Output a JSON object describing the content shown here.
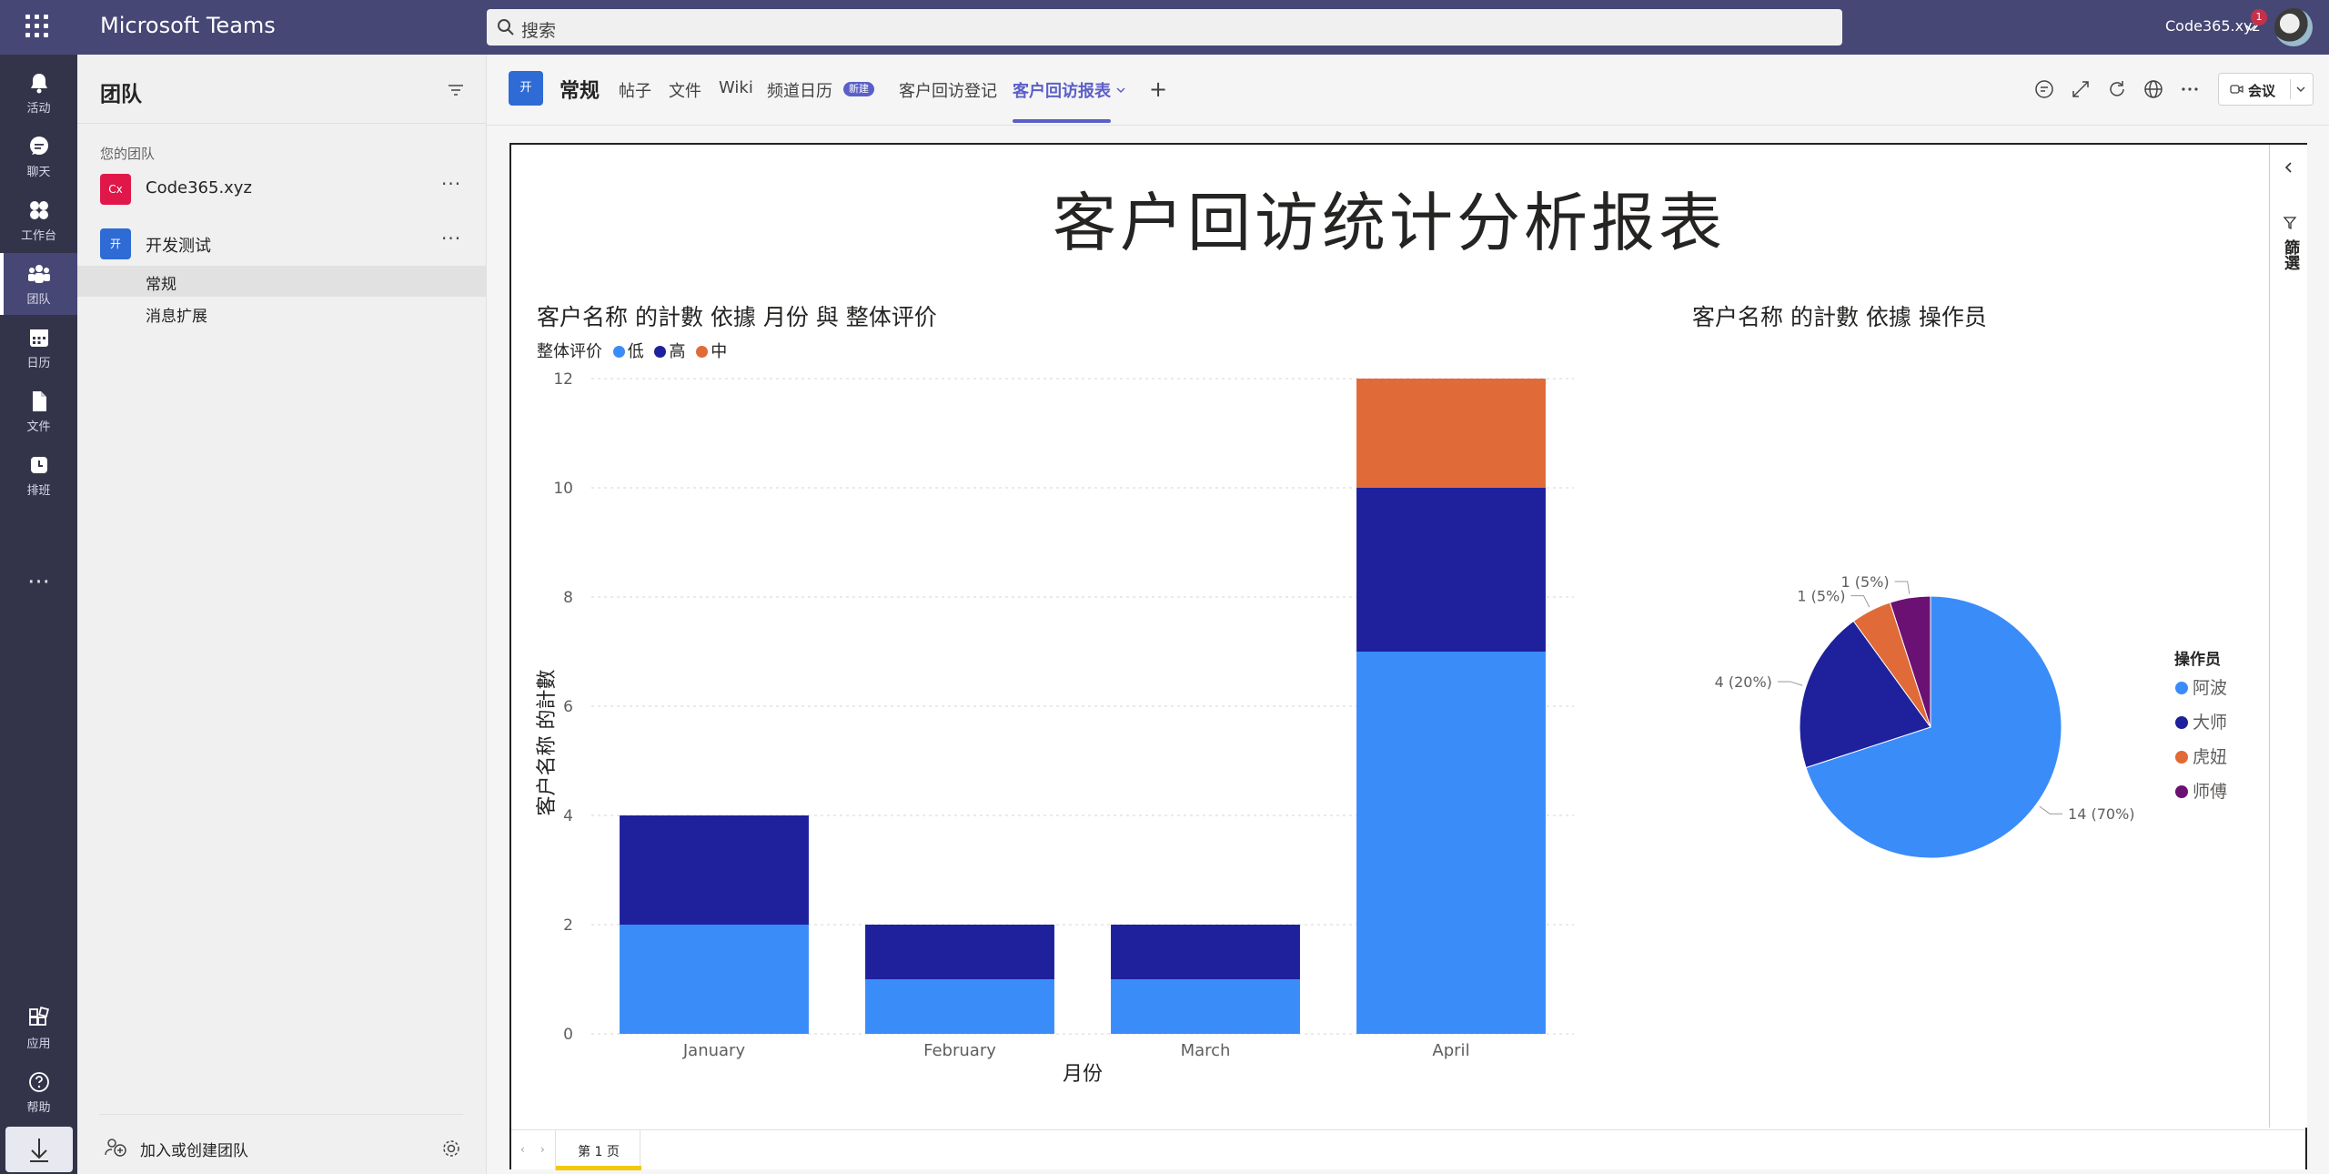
{
  "titlebar": {
    "app_name": "Microsoft Teams",
    "search_placeholder": "搜索",
    "tenant": "Code365.xyz",
    "notification_count": "1"
  },
  "rail": {
    "items": [
      {
        "label": "活动",
        "icon": "bell-icon"
      },
      {
        "label": "聊天",
        "icon": "chat-icon"
      },
      {
        "label": "工作台",
        "icon": "workspace-icon"
      },
      {
        "label": "团队",
        "icon": "teams-icon",
        "active": true
      },
      {
        "label": "日历",
        "icon": "calendar-icon"
      },
      {
        "label": "文件",
        "icon": "file-icon"
      },
      {
        "label": "排班",
        "icon": "shifts-icon"
      }
    ],
    "apps_label": "应用",
    "help_label": "帮助"
  },
  "teams_panel": {
    "title": "团队",
    "section_label": "您的团队",
    "teams": [
      {
        "name": "Code365.xyz",
        "badge": "Cx",
        "color": "#e0184a"
      },
      {
        "name": "开发测试",
        "badge": "开",
        "color": "#2f6bd5"
      }
    ],
    "channels": [
      {
        "name": "常规",
        "active": true
      },
      {
        "name": "消息扩展",
        "active": false
      }
    ],
    "join_label": "加入或创建团队"
  },
  "channel_header": {
    "badge": "开",
    "name": "常规",
    "tabs": [
      "帖子",
      "文件",
      "Wiki",
      "频道日历",
      "客户回访登记",
      "客户回访报表"
    ],
    "new_badge": "新建",
    "meet_label": "会议"
  },
  "report": {
    "title": "客户回访统计分析报表",
    "filters_label": "篩選",
    "page_tab": "第 1 页"
  },
  "chart_data": [
    {
      "type": "bar",
      "stacked": true,
      "title": "客户名称 的計數 依據 月份 與 整体评价",
      "legend_title": "整体评价",
      "xlabel": "月份",
      "ylabel": "客户名称 的計數",
      "categories": [
        "January",
        "February",
        "March",
        "April"
      ],
      "ylim": [
        0,
        12
      ],
      "yticks": [
        0,
        2,
        4,
        6,
        8,
        10,
        12
      ],
      "series": [
        {
          "name": "低",
          "color": "#3a8cf9",
          "values": [
            2,
            1,
            1,
            7
          ]
        },
        {
          "name": "高",
          "color": "#1e219b",
          "values": [
            2,
            1,
            1,
            3
          ]
        },
        {
          "name": "中",
          "color": "#e06b38",
          "values": [
            0,
            0,
            0,
            2
          ]
        }
      ]
    },
    {
      "type": "pie",
      "title": "客户名称 的計數 依據 操作员",
      "legend_title": "操作员",
      "slices": [
        {
          "name": "阿波",
          "value": 14,
          "label": "14 (70%)",
          "color": "#3a8cf9"
        },
        {
          "name": "大师",
          "value": 4,
          "label": "4 (20%)",
          "color": "#1e219b"
        },
        {
          "name": "虎妞",
          "value": 1,
          "label": "1 (5%)",
          "color": "#e06b38"
        },
        {
          "name": "师傅",
          "value": 1,
          "label": "1 (5%)",
          "color": "#6b1173"
        }
      ]
    }
  ]
}
